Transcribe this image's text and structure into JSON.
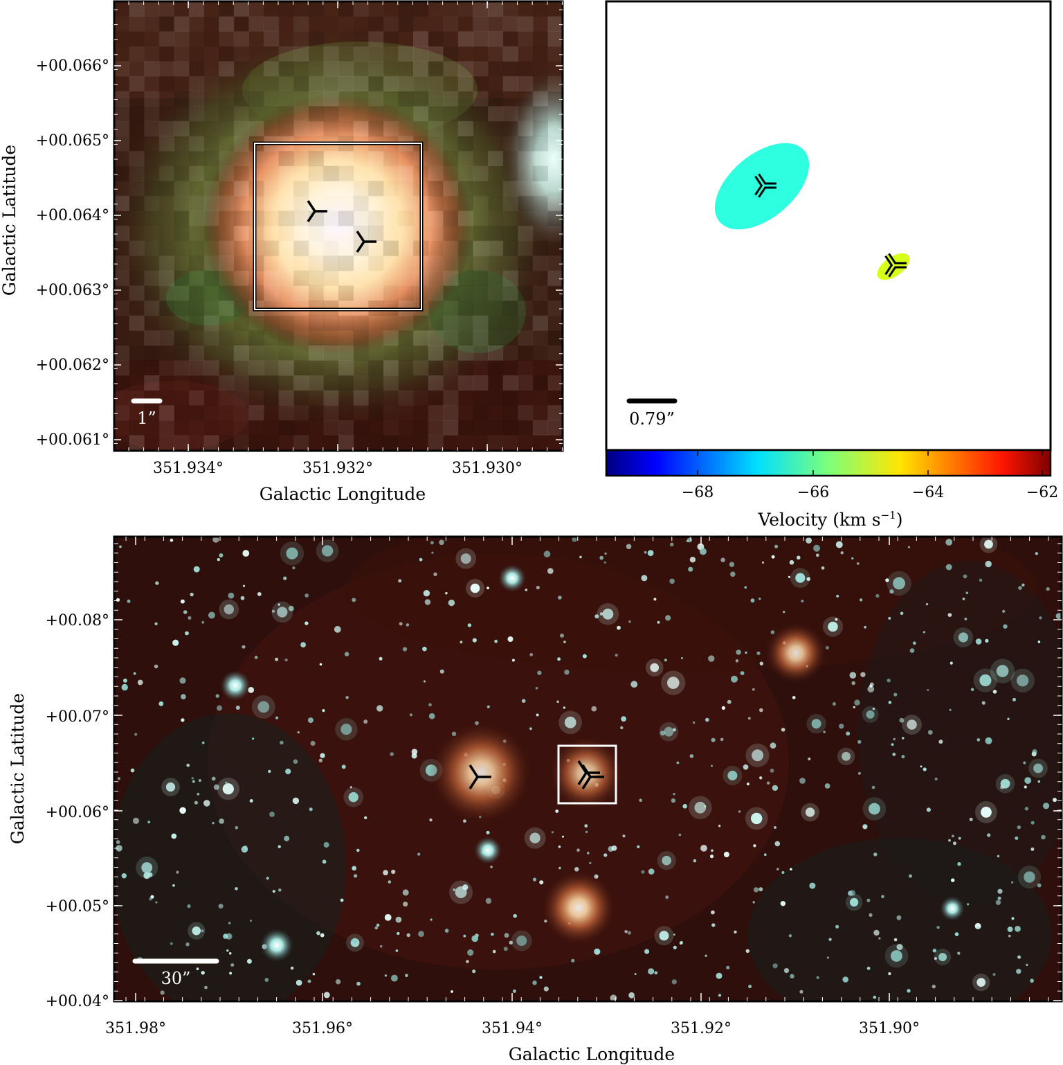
{
  "panel_top_left": {
    "y_axis_label": "Galactic Latitude",
    "x_axis_label": "Galactic Longitude",
    "y_ticks": [
      "+00.066°",
      "+00.065°",
      "+00.064°",
      "+00.063°",
      "+00.062°",
      "+00.061°"
    ],
    "x_ticks": [
      "351.934°",
      "351.932°",
      "351.930°"
    ],
    "scale_bar_label": "1”",
    "markers": [
      {
        "name": "maser-source-1",
        "glon": 351.9324,
        "glat": 0.064
      },
      {
        "name": "maser-source-2",
        "glon": 351.9316,
        "glat": 0.0637
      }
    ]
  },
  "panel_top_right": {
    "scale_bar_label": "0.79”",
    "colorbar_label": "Velocity (km s",
    "colorbar_label_exp": "−1",
    "colorbar_label_close": ")",
    "colorbar_ticks": [
      "−68",
      "−66",
      "−64",
      "−62"
    ],
    "colorbar_range": [
      -69.5,
      -61.8
    ],
    "colormap": "jet",
    "spots": [
      {
        "name": "maser-spot-cyan",
        "velocity": -66.5,
        "color": "#2effe0"
      },
      {
        "name": "maser-spot-yellow",
        "velocity": -64.7,
        "color": "#d6ff1a"
      }
    ]
  },
  "panel_bottom": {
    "y_axis_label": "Galactic Latitude",
    "x_axis_label": "Galactic Longitude",
    "y_ticks": [
      "+00.08°",
      "+00.07°",
      "+00.06°",
      "+00.05°",
      "+00.04°"
    ],
    "x_ticks": [
      "351.98°",
      "351.96°",
      "351.94°",
      "351.92°",
      "351.90°"
    ],
    "scale_bar_label": "30”",
    "bright_sources": [
      {
        "name": "source-a",
        "glon": 351.9435,
        "glat": 0.064
      },
      {
        "name": "source-b",
        "glon": 351.9325,
        "glat": 0.064
      },
      {
        "name": "source-c",
        "glon": 351.9325,
        "glat": 0.0497
      },
      {
        "name": "source-d",
        "glon": 351.91,
        "glat": 0.0765
      }
    ]
  }
}
